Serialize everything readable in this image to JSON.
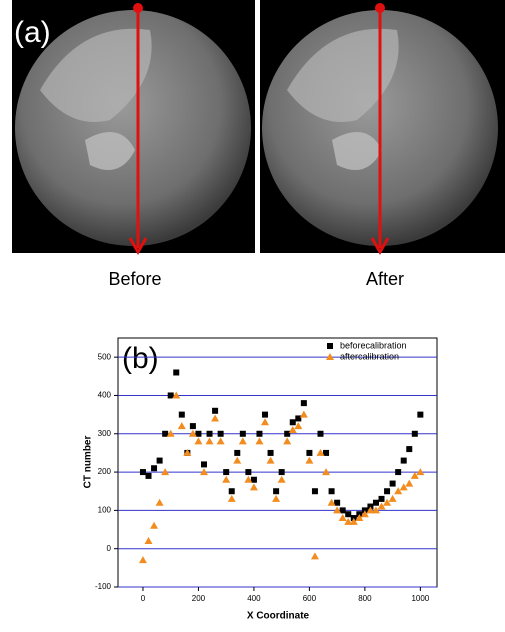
{
  "panel_a": {
    "label": "(a)",
    "captions": [
      "Before",
      "After"
    ]
  },
  "chart_data": {
    "type": "scatter",
    "annotation": "(b)",
    "x_label": "X Coordinate",
    "y_label": "CT number",
    "xlim": [
      -90,
      1060
    ],
    "ylim": [
      -100,
      550
    ],
    "xticks": [
      0,
      200,
      400,
      600,
      800,
      1000
    ],
    "yticks": [
      -100,
      0,
      100,
      200,
      300,
      400,
      500
    ],
    "grid": true,
    "legend": "top-right",
    "series": [
      {
        "name": "beforecalibration",
        "color": "#000000",
        "marker": "square",
        "x": [
          0,
          20,
          40,
          60,
          80,
          100,
          120,
          140,
          160,
          180,
          200,
          220,
          240,
          260,
          280,
          300,
          320,
          340,
          360,
          380,
          400,
          420,
          440,
          460,
          480,
          500,
          520,
          540,
          560,
          580,
          600,
          620,
          640,
          660,
          680,
          700,
          720,
          740,
          760,
          780,
          800,
          820,
          840,
          860,
          880,
          900,
          920,
          940,
          960,
          980,
          1000
        ],
        "values": [
          200,
          190,
          210,
          230,
          300,
          400,
          460,
          350,
          250,
          320,
          300,
          220,
          300,
          360,
          300,
          200,
          150,
          250,
          300,
          200,
          180,
          300,
          350,
          250,
          150,
          200,
          300,
          330,
          340,
          380,
          250,
          150,
          300,
          250,
          150,
          120,
          100,
          90,
          80,
          90,
          100,
          110,
          120,
          130,
          150,
          170,
          200,
          230,
          260,
          300,
          350
        ]
      },
      {
        "name": "aftercalibration",
        "color": "#f28c1e",
        "marker": "triangle",
        "x": [
          0,
          20,
          40,
          60,
          80,
          100,
          120,
          140,
          160,
          180,
          200,
          220,
          240,
          260,
          280,
          300,
          320,
          340,
          360,
          380,
          400,
          420,
          440,
          460,
          480,
          500,
          520,
          540,
          560,
          580,
          600,
          620,
          640,
          660,
          680,
          700,
          720,
          740,
          760,
          780,
          800,
          820,
          840,
          860,
          880,
          900,
          920,
          940,
          960,
          980,
          1000
        ],
        "values": [
          -30,
          20,
          60,
          120,
          200,
          300,
          400,
          320,
          250,
          300,
          280,
          200,
          280,
          340,
          280,
          180,
          130,
          230,
          280,
          180,
          160,
          280,
          330,
          230,
          130,
          180,
          280,
          310,
          320,
          350,
          230,
          -20,
          250,
          200,
          120,
          100,
          80,
          70,
          70,
          80,
          90,
          100,
          100,
          110,
          120,
          130,
          150,
          160,
          170,
          190,
          200
        ]
      }
    ]
  }
}
